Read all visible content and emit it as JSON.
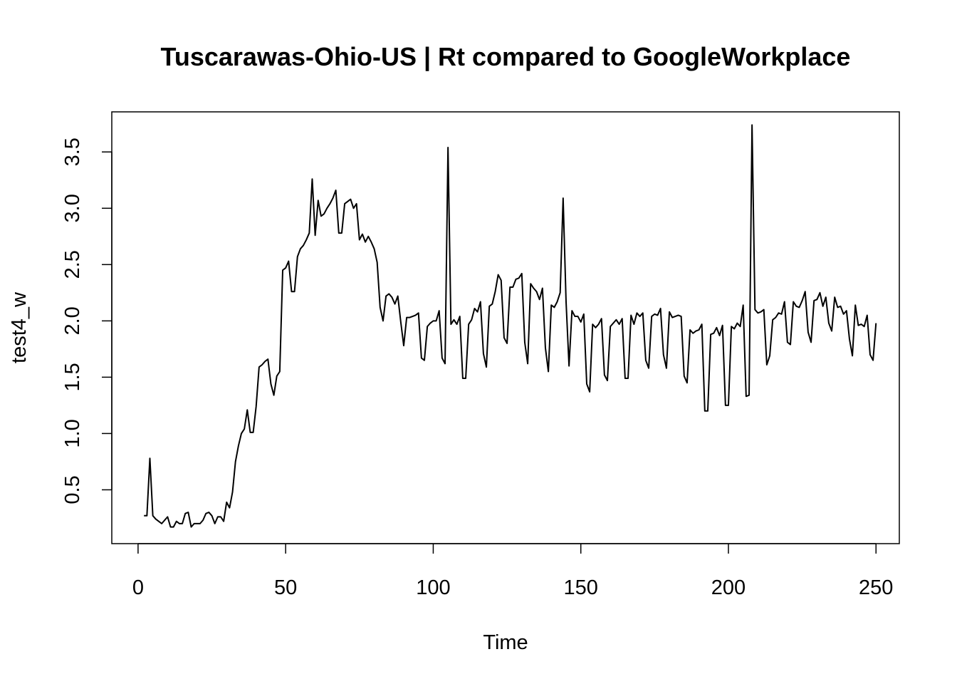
{
  "chart_data": {
    "type": "line",
    "title": "Tuscarawas-Ohio-US | Rt compared to GoogleWorkplace",
    "xlabel": "Time",
    "ylabel": "test4_w",
    "xlim": [
      -8.9,
      257.9
    ],
    "ylim": [
      0.022,
      3.856
    ],
    "xticks": [
      0,
      50,
      100,
      150,
      200,
      250
    ],
    "xtick_labels": [
      "0",
      "50",
      "100",
      "150",
      "200",
      "250"
    ],
    "yticks": [
      0.5,
      1.0,
      1.5,
      2.0,
      2.5,
      3.0,
      3.5
    ],
    "ytick_labels": [
      "0.5",
      "1.0",
      "1.5",
      "2.0",
      "2.5",
      "3.0",
      "3.5"
    ],
    "grid": false,
    "series": [
      {
        "x_start": 2,
        "values": [
          0.27,
          0.27,
          0.78,
          0.27,
          0.24,
          0.22,
          0.2,
          0.23,
          0.26,
          0.17,
          0.17,
          0.22,
          0.2,
          0.2,
          0.29,
          0.3,
          0.17,
          0.2,
          0.2,
          0.2,
          0.23,
          0.29,
          0.3,
          0.27,
          0.2,
          0.26,
          0.26,
          0.22,
          0.39,
          0.34,
          0.48,
          0.75,
          0.89,
          1.0,
          1.04,
          1.21,
          1.01,
          1.01,
          1.24,
          1.59,
          1.61,
          1.64,
          1.66,
          1.44,
          1.34,
          1.51,
          1.55,
          2.45,
          2.47,
          2.53,
          2.26,
          2.26,
          2.57,
          2.64,
          2.67,
          2.72,
          2.78,
          3.26,
          2.76,
          3.07,
          2.93,
          2.95,
          3.0,
          3.04,
          3.09,
          3.16,
          2.78,
          2.78,
          3.04,
          3.06,
          3.08,
          3.0,
          3.04,
          2.72,
          2.77,
          2.7,
          2.75,
          2.7,
          2.64,
          2.52,
          2.12,
          2.0,
          2.22,
          2.24,
          2.21,
          2.15,
          2.22,
          1.99,
          1.78,
          2.03,
          2.03,
          2.04,
          2.05,
          2.07,
          1.67,
          1.65,
          1.95,
          1.98,
          2.0,
          2.0,
          2.09,
          1.67,
          1.62,
          3.54,
          1.97,
          2.01,
          1.97,
          2.04,
          1.49,
          1.49,
          1.97,
          2.01,
          2.11,
          2.08,
          2.17,
          1.71,
          1.59,
          2.13,
          2.15,
          2.26,
          2.41,
          2.36,
          1.85,
          1.8,
          2.3,
          2.3,
          2.37,
          2.38,
          2.42,
          1.81,
          1.62,
          2.33,
          2.29,
          2.26,
          2.19,
          2.29,
          1.76,
          1.55,
          2.14,
          2.12,
          2.17,
          2.25,
          3.09,
          2.17,
          1.6,
          2.09,
          2.04,
          2.04,
          1.99,
          2.06,
          1.44,
          1.37,
          1.97,
          1.94,
          1.97,
          2.02,
          1.52,
          1.47,
          1.95,
          1.98,
          2.01,
          1.97,
          2.02,
          1.49,
          1.49,
          2.05,
          1.97,
          2.07,
          2.04,
          2.07,
          1.65,
          1.58,
          2.04,
          2.06,
          2.05,
          2.11,
          1.7,
          1.58,
          2.08,
          2.03,
          2.04,
          2.05,
          2.04,
          1.51,
          1.45,
          1.92,
          1.89,
          1.91,
          1.92,
          1.97,
          1.2,
          1.2,
          1.88,
          1.89,
          1.94,
          1.87,
          1.96,
          1.25,
          1.25,
          1.95,
          1.93,
          1.98,
          1.95,
          2.14,
          1.33,
          1.34,
          3.74,
          2.1,
          2.07,
          2.08,
          2.1,
          1.61,
          1.69,
          2.01,
          2.03,
          2.07,
          2.06,
          2.17,
          1.81,
          1.79,
          2.17,
          2.13,
          2.12,
          2.18,
          2.26,
          1.9,
          1.81,
          2.18,
          2.19,
          2.25,
          2.13,
          2.21,
          1.98,
          1.91,
          2.21,
          2.12,
          2.13,
          2.06,
          2.09,
          1.84,
          1.69,
          2.14,
          1.96,
          1.97,
          1.95,
          2.05,
          1.7,
          1.65,
          1.98
        ]
      }
    ]
  }
}
